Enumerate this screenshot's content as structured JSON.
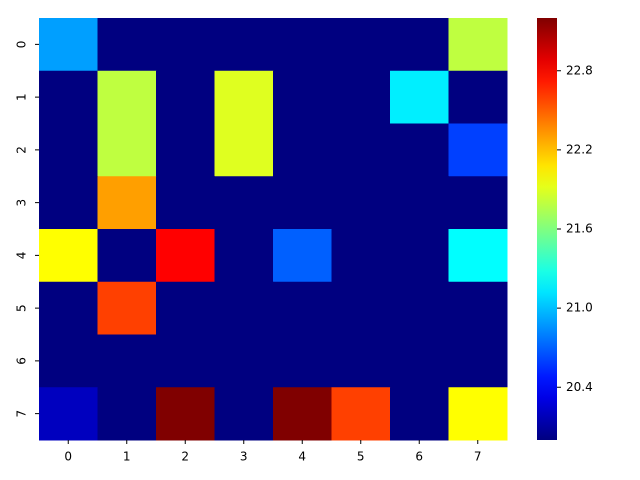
{
  "chart_data": {
    "type": "heatmap",
    "colormap": "jet",
    "x_categories": [
      "0",
      "1",
      "2",
      "3",
      "4",
      "5",
      "6",
      "7"
    ],
    "y_categories": [
      "0",
      "1",
      "2",
      "3",
      "4",
      "5",
      "6",
      "7"
    ],
    "values": [
      [
        20.9,
        20.0,
        20.0,
        20.0,
        20.0,
        20.0,
        20.0,
        21.8
      ],
      [
        20.0,
        21.8,
        20.0,
        21.9,
        20.0,
        20.0,
        21.15,
        20.0
      ],
      [
        20.0,
        21.8,
        20.0,
        21.9,
        20.0,
        20.0,
        20.0,
        20.6
      ],
      [
        20.0,
        22.3,
        20.0,
        20.0,
        20.0,
        20.0,
        20.0,
        20.0
      ],
      [
        22.0,
        20.0,
        22.8,
        20.0,
        20.7,
        20.0,
        20.0,
        21.2
      ],
      [
        20.0,
        22.6,
        20.0,
        20.0,
        20.0,
        20.0,
        20.0,
        20.0
      ],
      [
        20.0,
        20.0,
        20.0,
        20.0,
        20.0,
        20.0,
        20.0,
        20.0
      ],
      [
        20.2,
        20.0,
        23.2,
        20.0,
        23.2,
        22.6,
        20.0,
        22.0
      ]
    ],
    "clim": [
      20.0,
      23.2
    ],
    "cticks": [
      20.4,
      {
        "value": 21,
        "label": "21.0"
      },
      21.6,
      22.2,
      22.8
    ]
  }
}
